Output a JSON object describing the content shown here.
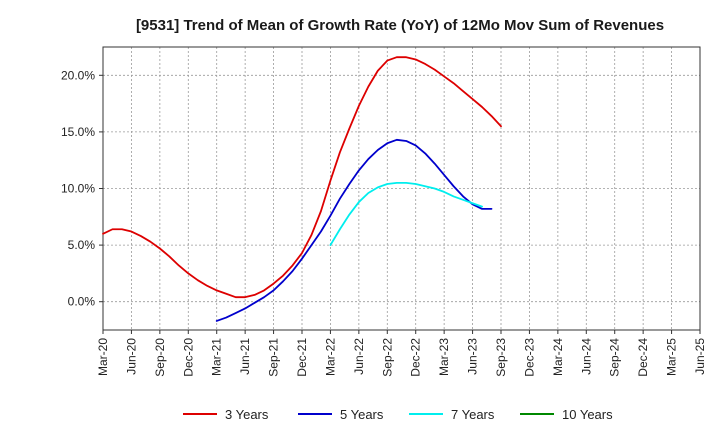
{
  "chart_data": {
    "type": "line",
    "title": "[9531]  Trend of Mean of Growth Rate (YoY) of 12Mo Mov Sum of Revenues",
    "xlabel": "",
    "ylabel": "",
    "ylim": [
      -2.5,
      22.5
    ],
    "y_ticks": [
      0,
      5,
      10,
      15,
      20
    ],
    "y_tick_labels": [
      "0.0%",
      "5.0%",
      "10.0%",
      "15.0%",
      "20.0%"
    ],
    "x_tick_labels": [
      "Mar-20",
      "Jun-20",
      "Sep-20",
      "Dec-20",
      "Mar-21",
      "Jun-21",
      "Sep-21",
      "Dec-21",
      "Mar-22",
      "Jun-22",
      "Sep-22",
      "Dec-22",
      "Mar-23",
      "Jun-23",
      "Sep-23",
      "Dec-23",
      "Mar-24",
      "Jun-24",
      "Sep-24",
      "Dec-24",
      "Mar-25",
      "Jun-25"
    ],
    "grid": true,
    "legend_position": "bottom",
    "series": [
      {
        "name": "3 Years",
        "color": "#dd0000",
        "start_index": 0,
        "values": [
          6.0,
          6.4,
          6.4,
          6.2,
          5.8,
          5.3,
          4.7,
          4.0,
          3.2,
          2.5,
          1.9,
          1.4,
          1.0,
          0.7,
          0.4,
          0.4,
          0.6,
          1.0,
          1.6,
          2.3,
          3.2,
          4.3,
          5.9,
          8.0,
          10.7,
          13.2,
          15.3,
          17.3,
          19.0,
          20.4,
          21.3,
          21.6,
          21.6,
          21.4,
          21.0,
          20.5,
          19.9,
          19.3,
          18.6,
          17.9,
          17.2,
          16.4,
          15.5
        ]
      },
      {
        "name": "5 Years",
        "color": "#0000cc",
        "start_index": 12,
        "values": [
          -1.7,
          -1.4,
          -1.0,
          -0.6,
          -0.1,
          0.4,
          1.0,
          1.8,
          2.7,
          3.8,
          5.0,
          6.2,
          7.6,
          9.1,
          10.4,
          11.6,
          12.6,
          13.4,
          14.0,
          14.3,
          14.2,
          13.8,
          13.1,
          12.2,
          11.2,
          10.2,
          9.3,
          8.6,
          8.2,
          8.2
        ]
      },
      {
        "name": "7 Years",
        "color": "#00eeee",
        "start_index": 24,
        "values": [
          5.0,
          6.4,
          7.7,
          8.8,
          9.6,
          10.1,
          10.4,
          10.5,
          10.5,
          10.4,
          10.2,
          10.0,
          9.7,
          9.3,
          9.0,
          8.7,
          8.4
        ]
      },
      {
        "name": "10 Years",
        "color": "#008800",
        "start_index": 0,
        "values": []
      }
    ]
  }
}
